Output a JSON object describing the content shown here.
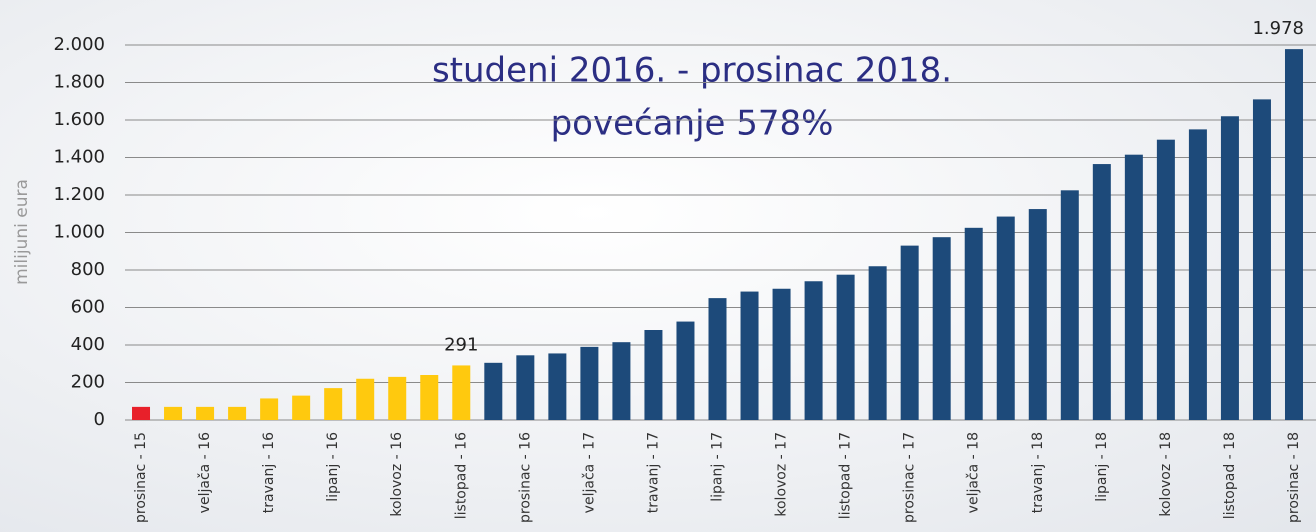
{
  "chart_data": {
    "type": "bar",
    "annotations": [
      "studeni 2016. - prosinac 2018.",
      "povećanje 578%"
    ],
    "ylabel": "milijuni eura",
    "categories": [
      "prosinac - 15",
      null,
      "veljača - 16",
      null,
      "travanj - 16",
      null,
      "lipanj - 16",
      null,
      "kolovoz - 16",
      null,
      "listopad - 16",
      null,
      "prosinac - 16",
      null,
      "veljača - 17",
      null,
      "travanj - 17",
      null,
      "lipanj - 17",
      null,
      "kolovoz - 17",
      null,
      "listopad - 17",
      null,
      "prosinac - 17",
      null,
      "veljača - 18",
      null,
      "travanj - 18",
      null,
      "lipanj - 18",
      null,
      "kolovoz - 18",
      null,
      "listopad - 18",
      null,
      "prosinac - 18"
    ],
    "values": [
      70,
      70,
      70,
      70,
      115,
      130,
      170,
      220,
      230,
      240,
      291,
      305,
      345,
      355,
      390,
      415,
      480,
      525,
      650,
      685,
      700,
      740,
      775,
      820,
      930,
      975,
      1025,
      1085,
      1125,
      1225,
      1365,
      1415,
      1495,
      1550,
      1620,
      1710,
      1978
    ],
    "value_labels": [
      null,
      null,
      null,
      null,
      null,
      null,
      null,
      null,
      null,
      null,
      "291",
      null,
      null,
      null,
      null,
      null,
      null,
      null,
      null,
      null,
      null,
      null,
      null,
      null,
      null,
      null,
      null,
      null,
      null,
      null,
      null,
      null,
      null,
      null,
      null,
      null,
      "1.978"
    ],
    "colors": [
      "#e8202a",
      "#ffc90e",
      "#ffc90e",
      "#ffc90e",
      "#ffc90e",
      "#ffc90e",
      "#ffc90e",
      "#ffc90e",
      "#ffc90e",
      "#ffc90e",
      "#ffc90e",
      "#1d4a7a",
      "#1d4a7a",
      "#1d4a7a",
      "#1d4a7a",
      "#1d4a7a",
      "#1d4a7a",
      "#1d4a7a",
      "#1d4a7a",
      "#1d4a7a",
      "#1d4a7a",
      "#1d4a7a",
      "#1d4a7a",
      "#1d4a7a",
      "#1d4a7a",
      "#1d4a7a",
      "#1d4a7a",
      "#1d4a7a",
      "#1d4a7a",
      "#1d4a7a",
      "#1d4a7a",
      "#1d4a7a",
      "#1d4a7a",
      "#1d4a7a",
      "#1d4a7a",
      "#1d4a7a",
      "#1d4a7a"
    ],
    "ylim": [
      0,
      2000
    ],
    "yticks": [
      0,
      200,
      400,
      600,
      800,
      {
        "value": 1000,
        "label": "1.000"
      },
      {
        "value": 1200,
        "label": "1.200"
      },
      {
        "value": 1400,
        "label": "1.400"
      },
      {
        "value": 1600,
        "label": "1.600"
      },
      {
        "value": 1800,
        "label": "1.800"
      },
      {
        "value": 2000,
        "label": "2.000"
      }
    ],
    "grid": true
  }
}
